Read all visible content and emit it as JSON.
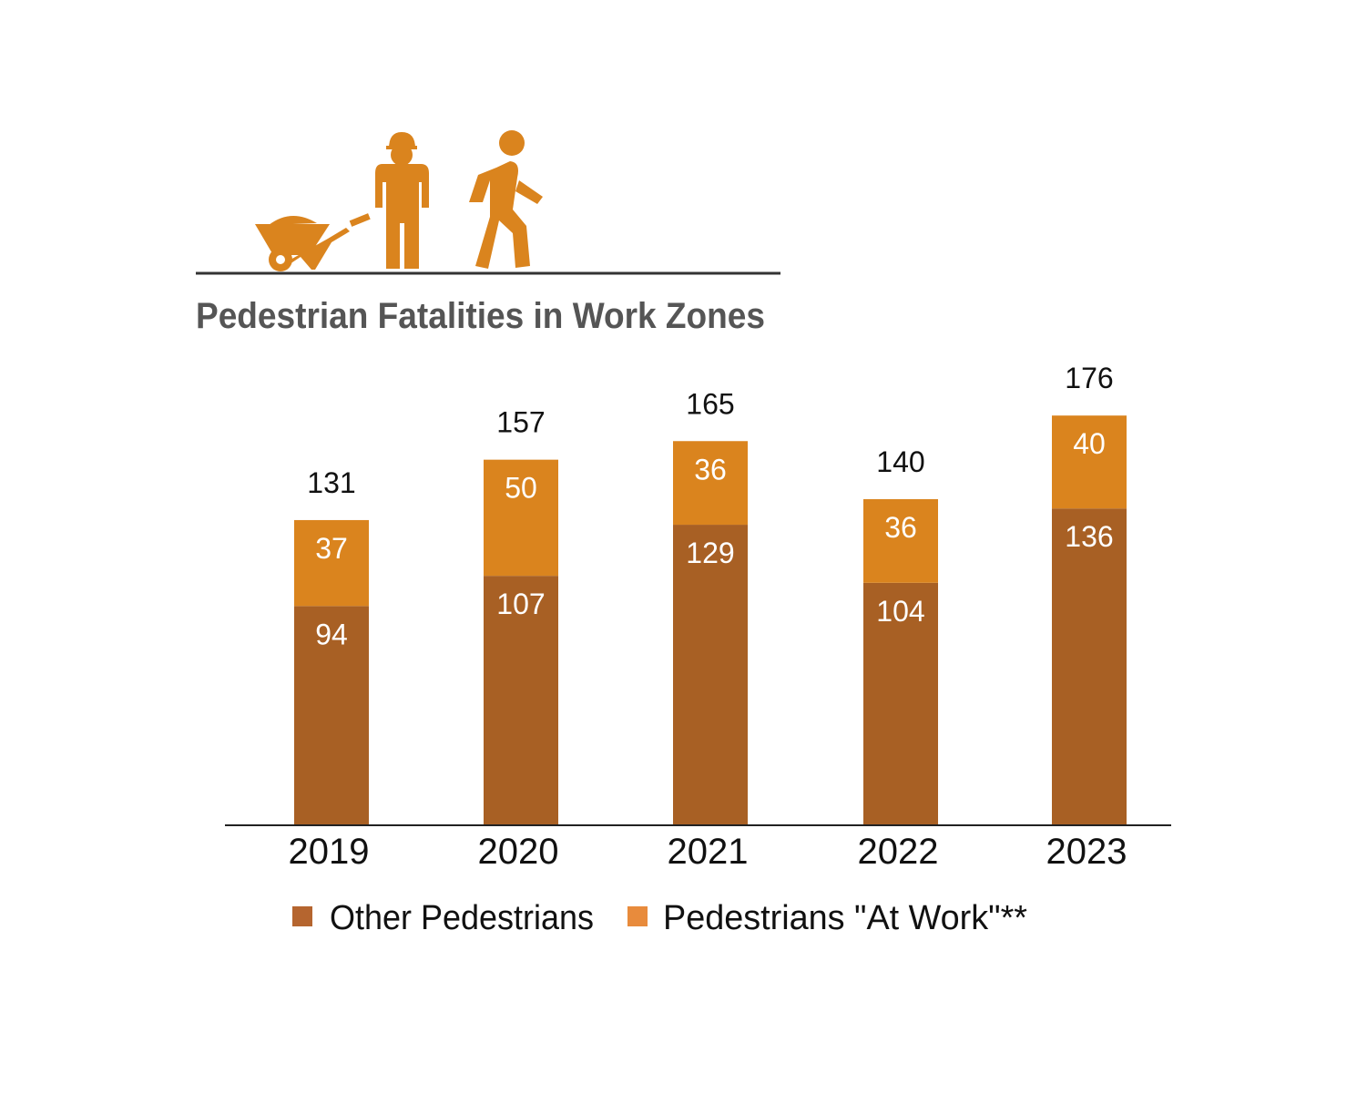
{
  "chart_data": {
    "type": "bar",
    "stacked": true,
    "title": "Pedestrian Fatalities in Work Zones",
    "categories": [
      "2019",
      "2020",
      "2021",
      "2022",
      "2023"
    ],
    "series": [
      {
        "name": "Other Pedestrians",
        "values": [
          94,
          107,
          129,
          104,
          136
        ],
        "color": "#A86024"
      },
      {
        "name": "Pedestrians \"At Work\"**",
        "values": [
          37,
          50,
          36,
          36,
          40
        ],
        "color": "#DA841E"
      }
    ],
    "totals": [
      131,
      157,
      165,
      140,
      176
    ],
    "ylim": [
      0,
      176
    ],
    "grid": false,
    "legend_position": "bottom",
    "legend_colors": [
      "#B5652F",
      "#E88B3C"
    ],
    "icon_color": "#DA841E",
    "icons": [
      "wheelbarrow-icon",
      "construction-worker-icon",
      "pedestrian-walking-icon"
    ]
  }
}
